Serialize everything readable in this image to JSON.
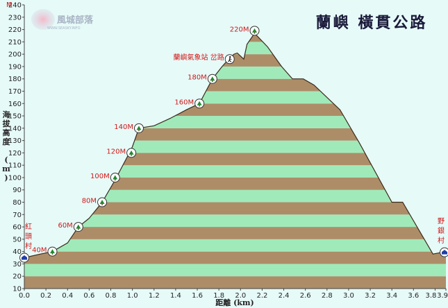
{
  "chart_data": {
    "type": "area",
    "title": "蘭嶼 橫貫公路",
    "xlabel": "距離 (km)",
    "ylabel": "海拔高度 (m)",
    "y_unit_label": "M",
    "xlim": [
      0,
      3.9
    ],
    "ylim": [
      10,
      240
    ],
    "x_ticks": [
      "0.0",
      "0.2",
      "0.4",
      "0.6",
      "0.8",
      "1.0",
      "1.2",
      "1.4",
      "1.6",
      "1.8",
      "2.0",
      "2.2",
      "2.4",
      "2.6",
      "2.8",
      "3.0",
      "3.2",
      "3.4",
      "3.6",
      "3.8",
      "3.9"
    ],
    "y_ticks": [
      "10",
      "20",
      "30",
      "40",
      "50",
      "60",
      "70",
      "80",
      "90",
      "100",
      "110",
      "120",
      "130",
      "140",
      "150",
      "160",
      "170",
      "180",
      "190",
      "200",
      "210",
      "220",
      "230",
      "240"
    ],
    "profile": {
      "x": [
        0.0,
        0.15,
        0.26,
        0.4,
        0.5,
        0.6,
        0.72,
        0.84,
        0.96,
        1.0,
        1.06,
        1.2,
        1.35,
        1.5,
        1.62,
        1.74,
        1.83,
        1.9,
        1.94,
        1.97,
        2.03,
        2.06,
        2.13,
        2.25,
        2.38,
        2.48,
        2.58,
        2.68,
        2.86,
        2.92,
        3.1,
        3.4,
        3.5,
        3.78,
        3.9
      ],
      "y": [
        35,
        38,
        40,
        47,
        60,
        67,
        80,
        98,
        118,
        125,
        140,
        142,
        148,
        155,
        160,
        180,
        190,
        197,
        200,
        201,
        196,
        208,
        217,
        206,
        190,
        180,
        180,
        175,
        160,
        155,
        128,
        80,
        80,
        38,
        40
      ]
    },
    "bands": {
      "step": 10,
      "colors": [
        "#ad8d68",
        "#a0eaba"
      ]
    },
    "markers": [
      {
        "label": "40M",
        "x": 0.26,
        "y": 40,
        "icon": "tree-icon"
      },
      {
        "label": "60M",
        "x": 0.5,
        "y": 60,
        "icon": "tree-icon"
      },
      {
        "label": "80M",
        "x": 0.72,
        "y": 80,
        "icon": "tree-icon"
      },
      {
        "label": "100M",
        "x": 0.84,
        "y": 100,
        "icon": "tree-icon"
      },
      {
        "label": "120M",
        "x": 0.99,
        "y": 120,
        "icon": "tree-icon"
      },
      {
        "label": "140M",
        "x": 1.06,
        "y": 140,
        "icon": "tree-icon"
      },
      {
        "label": "160M",
        "x": 1.62,
        "y": 160,
        "icon": "tree-icon"
      },
      {
        "label": "180M",
        "x": 1.74,
        "y": 180,
        "icon": "tree-icon"
      },
      {
        "label": "蘭嶼氣象站 岔路",
        "x": 1.9,
        "y": 196,
        "icon": "hiker-icon"
      },
      {
        "label": "220M",
        "x": 2.13,
        "y": 219,
        "icon": "tree-icon"
      }
    ],
    "endpoints": {
      "start": {
        "label": "紅頭村",
        "x": 0.0,
        "y": 35,
        "icon": "house-icon"
      },
      "end": {
        "label": "野銀村",
        "x": 3.9,
        "y": 40,
        "icon": "house-icon"
      }
    },
    "grid": false,
    "watermark": {
      "text": "風城部落",
      "sub": "WWW.SEASKY.INFO"
    }
  }
}
